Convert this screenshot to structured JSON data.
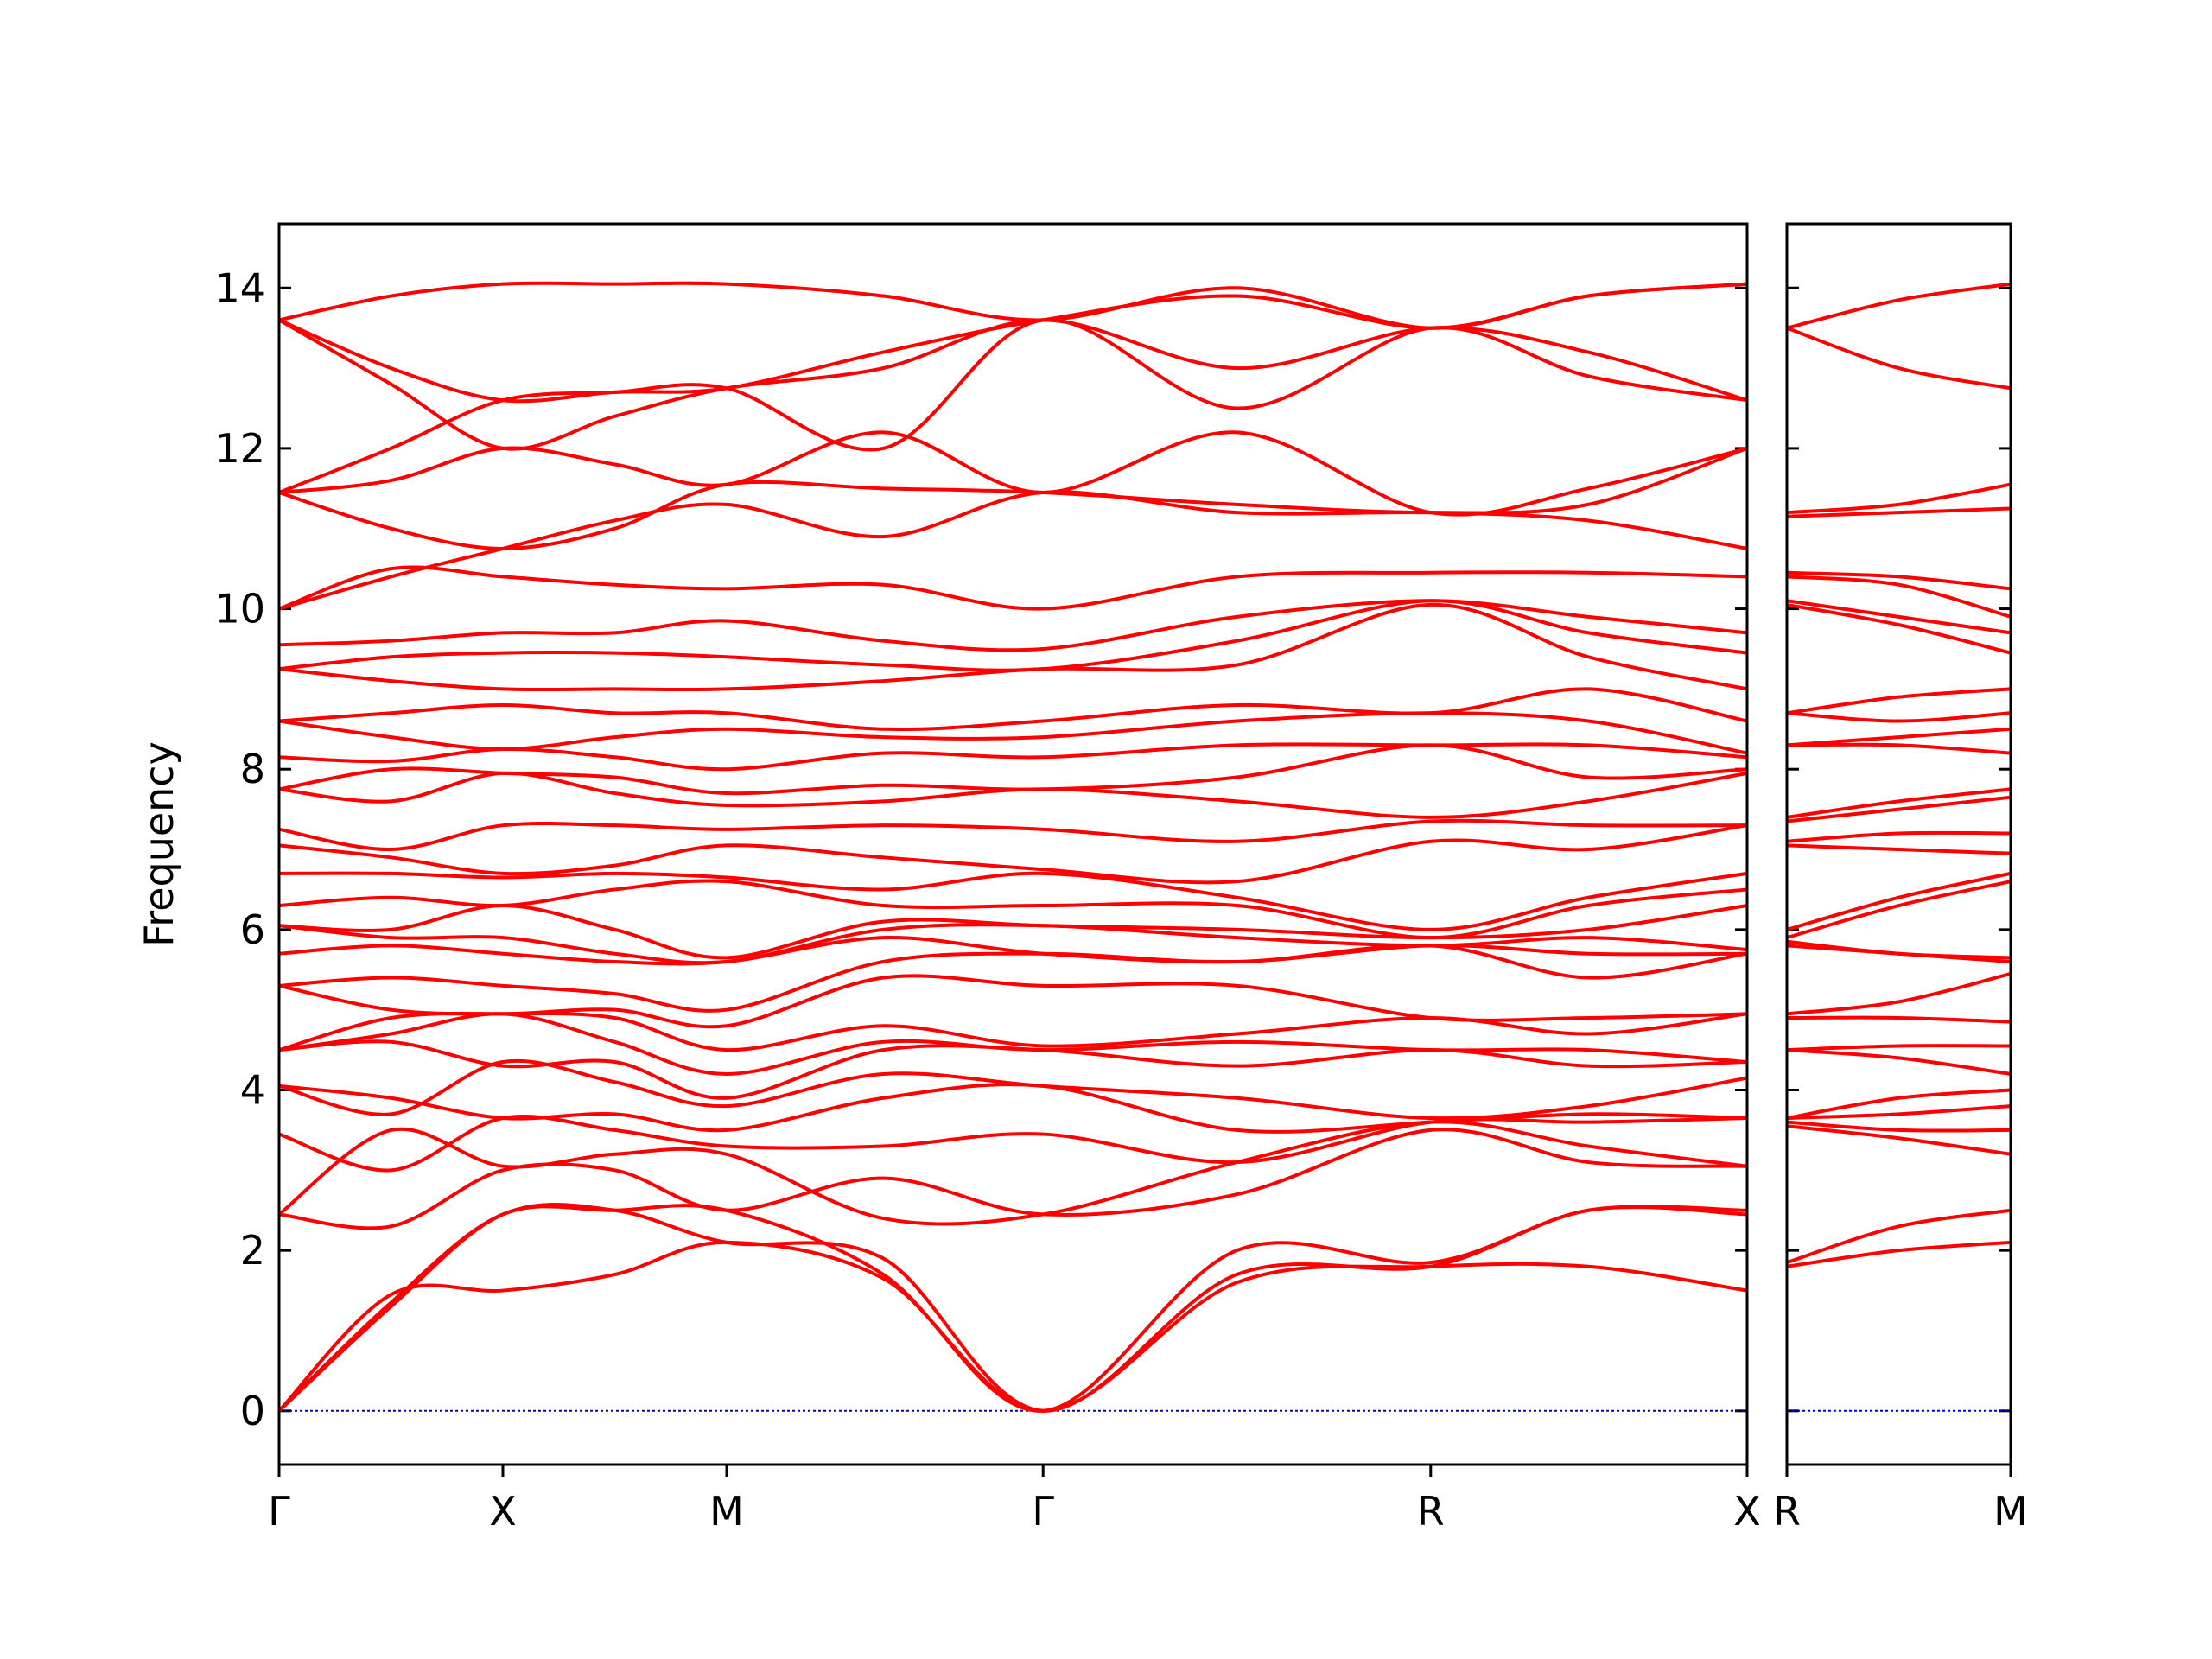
{
  "chart_data": [
    {
      "type": "line",
      "ylabel": "Frequency",
      "color": "#ff0000",
      "zero_line": true,
      "zero_line_color": "#0000cc",
      "x": [
        0,
        0.5,
        1,
        1.5,
        2,
        2.7,
        3.414,
        4.28,
        5.146,
        5.85,
        6.56
      ],
      "xlim": [
        0,
        6.56
      ],
      "xticks": [
        {
          "value": 0,
          "label": "Γ"
        },
        {
          "value": 1,
          "label": "X"
        },
        {
          "value": 2,
          "label": "M"
        },
        {
          "value": 3.414,
          "label": "Γ"
        },
        {
          "value": 5.146,
          "label": "R"
        },
        {
          "value": 6.56,
          "label": "X"
        }
      ],
      "ylim": [
        -0.67,
        14.8
      ],
      "yticks": [
        0,
        2,
        4,
        6,
        8,
        10,
        12,
        14
      ],
      "series": [
        {
          "values": [
            0,
            1.45,
            1.5,
            1.7,
            2.1,
            1.65,
            0,
            1.6,
            1.8,
            1.8,
            1.5
          ]
        },
        {
          "values": [
            0,
            1.3,
            2.45,
            2.5,
            2.1,
            1.9,
            0,
            1.7,
            1.8,
            2.5,
            2.45
          ]
        },
        {
          "values": [
            0,
            1.35,
            2.45,
            2.5,
            2.5,
            1.7,
            0,
            2.0,
            1.85,
            2.5,
            2.5
          ]
        },
        {
          "values": [
            2.45,
            2.3,
            3.0,
            3.0,
            2.5,
            2.9,
            2.45,
            2.7,
            3.5,
            3.1,
            3.05
          ]
        },
        {
          "values": [
            2.45,
            3.5,
            3.05,
            3.2,
            3.2,
            2.4,
            2.45,
            3.1,
            3.6,
            3.3,
            3.05
          ]
        },
        {
          "values": [
            3.45,
            3.0,
            3.65,
            3.5,
            3.3,
            3.3,
            3.45,
            3.1,
            3.6,
            3.6,
            3.65
          ]
        },
        {
          "values": [
            4.05,
            3.9,
            3.65,
            3.7,
            3.5,
            3.9,
            4.05,
            3.5,
            3.6,
            3.7,
            3.65
          ]
        },
        {
          "values": [
            4.05,
            3.7,
            4.35,
            4.1,
            3.8,
            4.2,
            4.05,
            3.9,
            3.65,
            3.8,
            4.15
          ]
        },
        {
          "values": [
            4.5,
            4.6,
            4.3,
            4.35,
            3.9,
            4.5,
            4.5,
            4.3,
            4.5,
            4.3,
            4.35
          ]
        },
        {
          "values": [
            4.5,
            4.7,
            4.95,
            4.6,
            4.2,
            4.6,
            4.5,
            4.6,
            4.5,
            4.5,
            4.35
          ]
        },
        {
          "values": [
            4.5,
            4.9,
            4.95,
            4.9,
            4.5,
            4.8,
            4.55,
            4.7,
            4.9,
            4.7,
            4.95
          ]
        },
        {
          "values": [
            5.3,
            5.0,
            4.95,
            5.0,
            4.8,
            5.4,
            5.3,
            5.3,
            4.9,
            4.9,
            4.95
          ]
        },
        {
          "values": [
            5.3,
            5.4,
            5.3,
            5.2,
            5.0,
            5.6,
            5.7,
            5.6,
            5.8,
            5.4,
            5.7
          ]
        },
        {
          "values": [
            5.7,
            5.8,
            5.7,
            5.6,
            5.6,
            5.9,
            5.7,
            5.6,
            5.8,
            5.7,
            5.7
          ]
        },
        {
          "values": [
            6.05,
            5.9,
            5.9,
            5.7,
            5.6,
            6.0,
            6.05,
            5.9,
            5.8,
            5.9,
            5.75
          ]
        },
        {
          "values": [
            6.05,
            6.0,
            6.3,
            6.0,
            5.65,
            6.1,
            6.05,
            6.0,
            5.9,
            6.0,
            6.3
          ]
        },
        {
          "values": [
            6.3,
            6.4,
            6.3,
            6.5,
            6.6,
            6.3,
            6.3,
            6.3,
            5.9,
            6.3,
            6.5
          ]
        },
        {
          "values": [
            6.7,
            6.7,
            6.65,
            6.7,
            6.65,
            6.5,
            6.7,
            6.4,
            6.0,
            6.4,
            6.7
          ]
        },
        {
          "values": [
            7.05,
            6.9,
            6.7,
            6.8,
            7.05,
            6.9,
            6.75,
            6.6,
            7.1,
            7.0,
            7.3
          ]
        },
        {
          "values": [
            7.25,
            7.0,
            7.3,
            7.3,
            7.25,
            7.3,
            7.25,
            7.1,
            7.35,
            7.3,
            7.3
          ]
        },
        {
          "values": [
            7.75,
            7.6,
            7.95,
            7.7,
            7.55,
            7.6,
            7.75,
            7.6,
            7.4,
            7.6,
            7.95
          ]
        },
        {
          "values": [
            7.75,
            8.0,
            7.95,
            7.9,
            7.7,
            7.8,
            7.75,
            7.9,
            8.3,
            7.9,
            8.0
          ]
        },
        {
          "values": [
            8.15,
            8.1,
            8.25,
            8.15,
            8.0,
            8.2,
            8.15,
            8.3,
            8.3,
            8.3,
            8.15
          ]
        },
        {
          "values": [
            8.6,
            8.4,
            8.25,
            8.4,
            8.5,
            8.4,
            8.4,
            8.6,
            8.7,
            8.6,
            8.2
          ]
        },
        {
          "values": [
            8.6,
            8.7,
            8.8,
            8.7,
            8.7,
            8.5,
            8.6,
            8.8,
            8.7,
            9.0,
            8.6
          ]
        },
        {
          "values": [
            9.25,
            9.1,
            9.0,
            9.0,
            9.0,
            9.1,
            9.25,
            9.3,
            10.05,
            9.4,
            9.0
          ]
        },
        {
          "values": [
            9.25,
            9.4,
            9.45,
            9.45,
            9.4,
            9.3,
            9.25,
            9.6,
            10.1,
            9.7,
            9.45
          ]
        },
        {
          "values": [
            9.55,
            9.6,
            9.7,
            9.7,
            9.85,
            9.6,
            9.5,
            9.9,
            10.1,
            9.9,
            9.7
          ]
        },
        {
          "values": [
            10.0,
            10.5,
            10.4,
            10.3,
            10.25,
            10.3,
            10.0,
            10.4,
            10.45,
            10.45,
            10.4
          ]
        },
        {
          "values": [
            10.0,
            10.4,
            10.75,
            11.1,
            11.3,
            10.9,
            11.45,
            11.2,
            11.2,
            11.1,
            10.75
          ]
        },
        {
          "values": [
            11.45,
            11.0,
            10.75,
            11.0,
            11.55,
            11.5,
            11.45,
            11.3,
            11.2,
            11.3,
            12.0
          ]
        },
        {
          "values": [
            11.45,
            11.6,
            12.0,
            11.8,
            11.55,
            12.2,
            11.45,
            12.2,
            11.2,
            11.5,
            12.0
          ]
        },
        {
          "values": [
            11.45,
            12.0,
            12.6,
            12.7,
            12.75,
            12.0,
            13.6,
            12.5,
            13.5,
            12.9,
            12.6
          ]
        },
        {
          "values": [
            13.6,
            12.8,
            12.0,
            12.4,
            12.75,
            13.0,
            13.6,
            13.0,
            13.5,
            13.2,
            12.6
          ]
        },
        {
          "values": [
            13.6,
            13.0,
            12.6,
            12.7,
            12.75,
            13.2,
            13.6,
            13.9,
            13.5,
            13.9,
            14.05
          ]
        },
        {
          "values": [
            13.6,
            13.9,
            14.05,
            14.05,
            14.05,
            13.9,
            13.6,
            14.0,
            13.5,
            13.9,
            14.05
          ]
        }
      ]
    },
    {
      "type": "line",
      "color": "#ff0000",
      "zero_line": true,
      "zero_line_color": "#0000cc",
      "x": [
        0,
        0.5,
        1
      ],
      "xlim": [
        0,
        1
      ],
      "xticks": [
        {
          "value": 0,
          "label": "R"
        },
        {
          "value": 1,
          "label": "M"
        }
      ],
      "ylim": [
        -0.67,
        14.8
      ],
      "yticks": [
        0,
        2,
        4,
        6,
        8,
        10,
        12,
        14
      ],
      "ytick_labels": false,
      "series": [
        {
          "values": [
            1.8,
            2.0,
            2.1
          ]
        },
        {
          "values": [
            1.85,
            2.3,
            2.5
          ]
        },
        {
          "values": [
            3.55,
            3.4,
            3.2
          ]
        },
        {
          "values": [
            3.6,
            3.5,
            3.5
          ]
        },
        {
          "values": [
            3.65,
            3.7,
            3.8
          ]
        },
        {
          "values": [
            3.65,
            3.9,
            4.0
          ]
        },
        {
          "values": [
            4.5,
            4.4,
            4.2
          ]
        },
        {
          "values": [
            4.5,
            4.55,
            4.55
          ]
        },
        {
          "values": [
            4.9,
            4.9,
            4.85
          ]
        },
        {
          "values": [
            4.95,
            5.1,
            5.45
          ]
        },
        {
          "values": [
            5.8,
            5.7,
            5.6
          ]
        },
        {
          "values": [
            5.85,
            5.7,
            5.65
          ]
        },
        {
          "values": [
            5.9,
            6.3,
            6.6
          ]
        },
        {
          "values": [
            6.0,
            6.4,
            6.7
          ]
        },
        {
          "values": [
            7.05,
            7.0,
            6.95
          ]
        },
        {
          "values": [
            7.1,
            7.2,
            7.2
          ]
        },
        {
          "values": [
            7.35,
            7.5,
            7.65
          ]
        },
        {
          "values": [
            7.4,
            7.6,
            7.75
          ]
        },
        {
          "values": [
            8.3,
            8.3,
            8.2
          ]
        },
        {
          "values": [
            8.3,
            8.4,
            8.5
          ]
        },
        {
          "values": [
            8.7,
            8.6,
            8.7
          ]
        },
        {
          "values": [
            8.7,
            8.9,
            9.0
          ]
        },
        {
          "values": [
            10.05,
            9.8,
            9.45
          ]
        },
        {
          "values": [
            10.1,
            9.9,
            9.7
          ]
        },
        {
          "values": [
            10.4,
            10.3,
            9.9
          ]
        },
        {
          "values": [
            10.45,
            10.4,
            10.25
          ]
        },
        {
          "values": [
            11.15,
            11.2,
            11.25
          ]
        },
        {
          "values": [
            11.2,
            11.3,
            11.55
          ]
        },
        {
          "values": [
            13.5,
            13.0,
            12.75
          ]
        },
        {
          "values": [
            13.5,
            13.85,
            14.05
          ]
        }
      ]
    }
  ]
}
